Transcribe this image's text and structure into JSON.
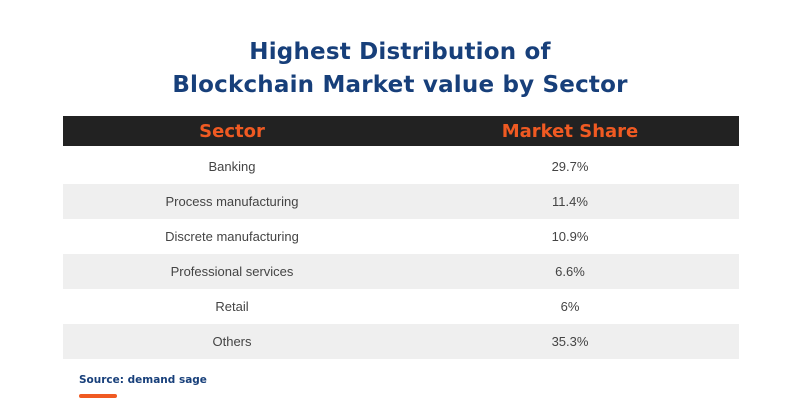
{
  "chart_data": {
    "type": "table",
    "title_lines": [
      "Highest Distribution of",
      "Blockchain Market value by Sector"
    ],
    "columns": [
      "Sector",
      "Market Share"
    ],
    "rows": [
      {
        "sector": "Banking",
        "share": "29.7%"
      },
      {
        "sector": "Process manufacturing",
        "share": "11.4%"
      },
      {
        "sector": "Discrete manufacturing",
        "share": "10.9%"
      },
      {
        "sector": "Professional services",
        "share": "6.6%"
      },
      {
        "sector": "Retail",
        "share": "6%"
      },
      {
        "sector": "Others",
        "share": "35.3%"
      }
    ],
    "source": "Source: demand sage"
  },
  "colors": {
    "title": "#173f7a",
    "header_bg": "#222222",
    "header_text": "#f05a22",
    "stripe": "#efefef",
    "accent": "#f05a22"
  }
}
